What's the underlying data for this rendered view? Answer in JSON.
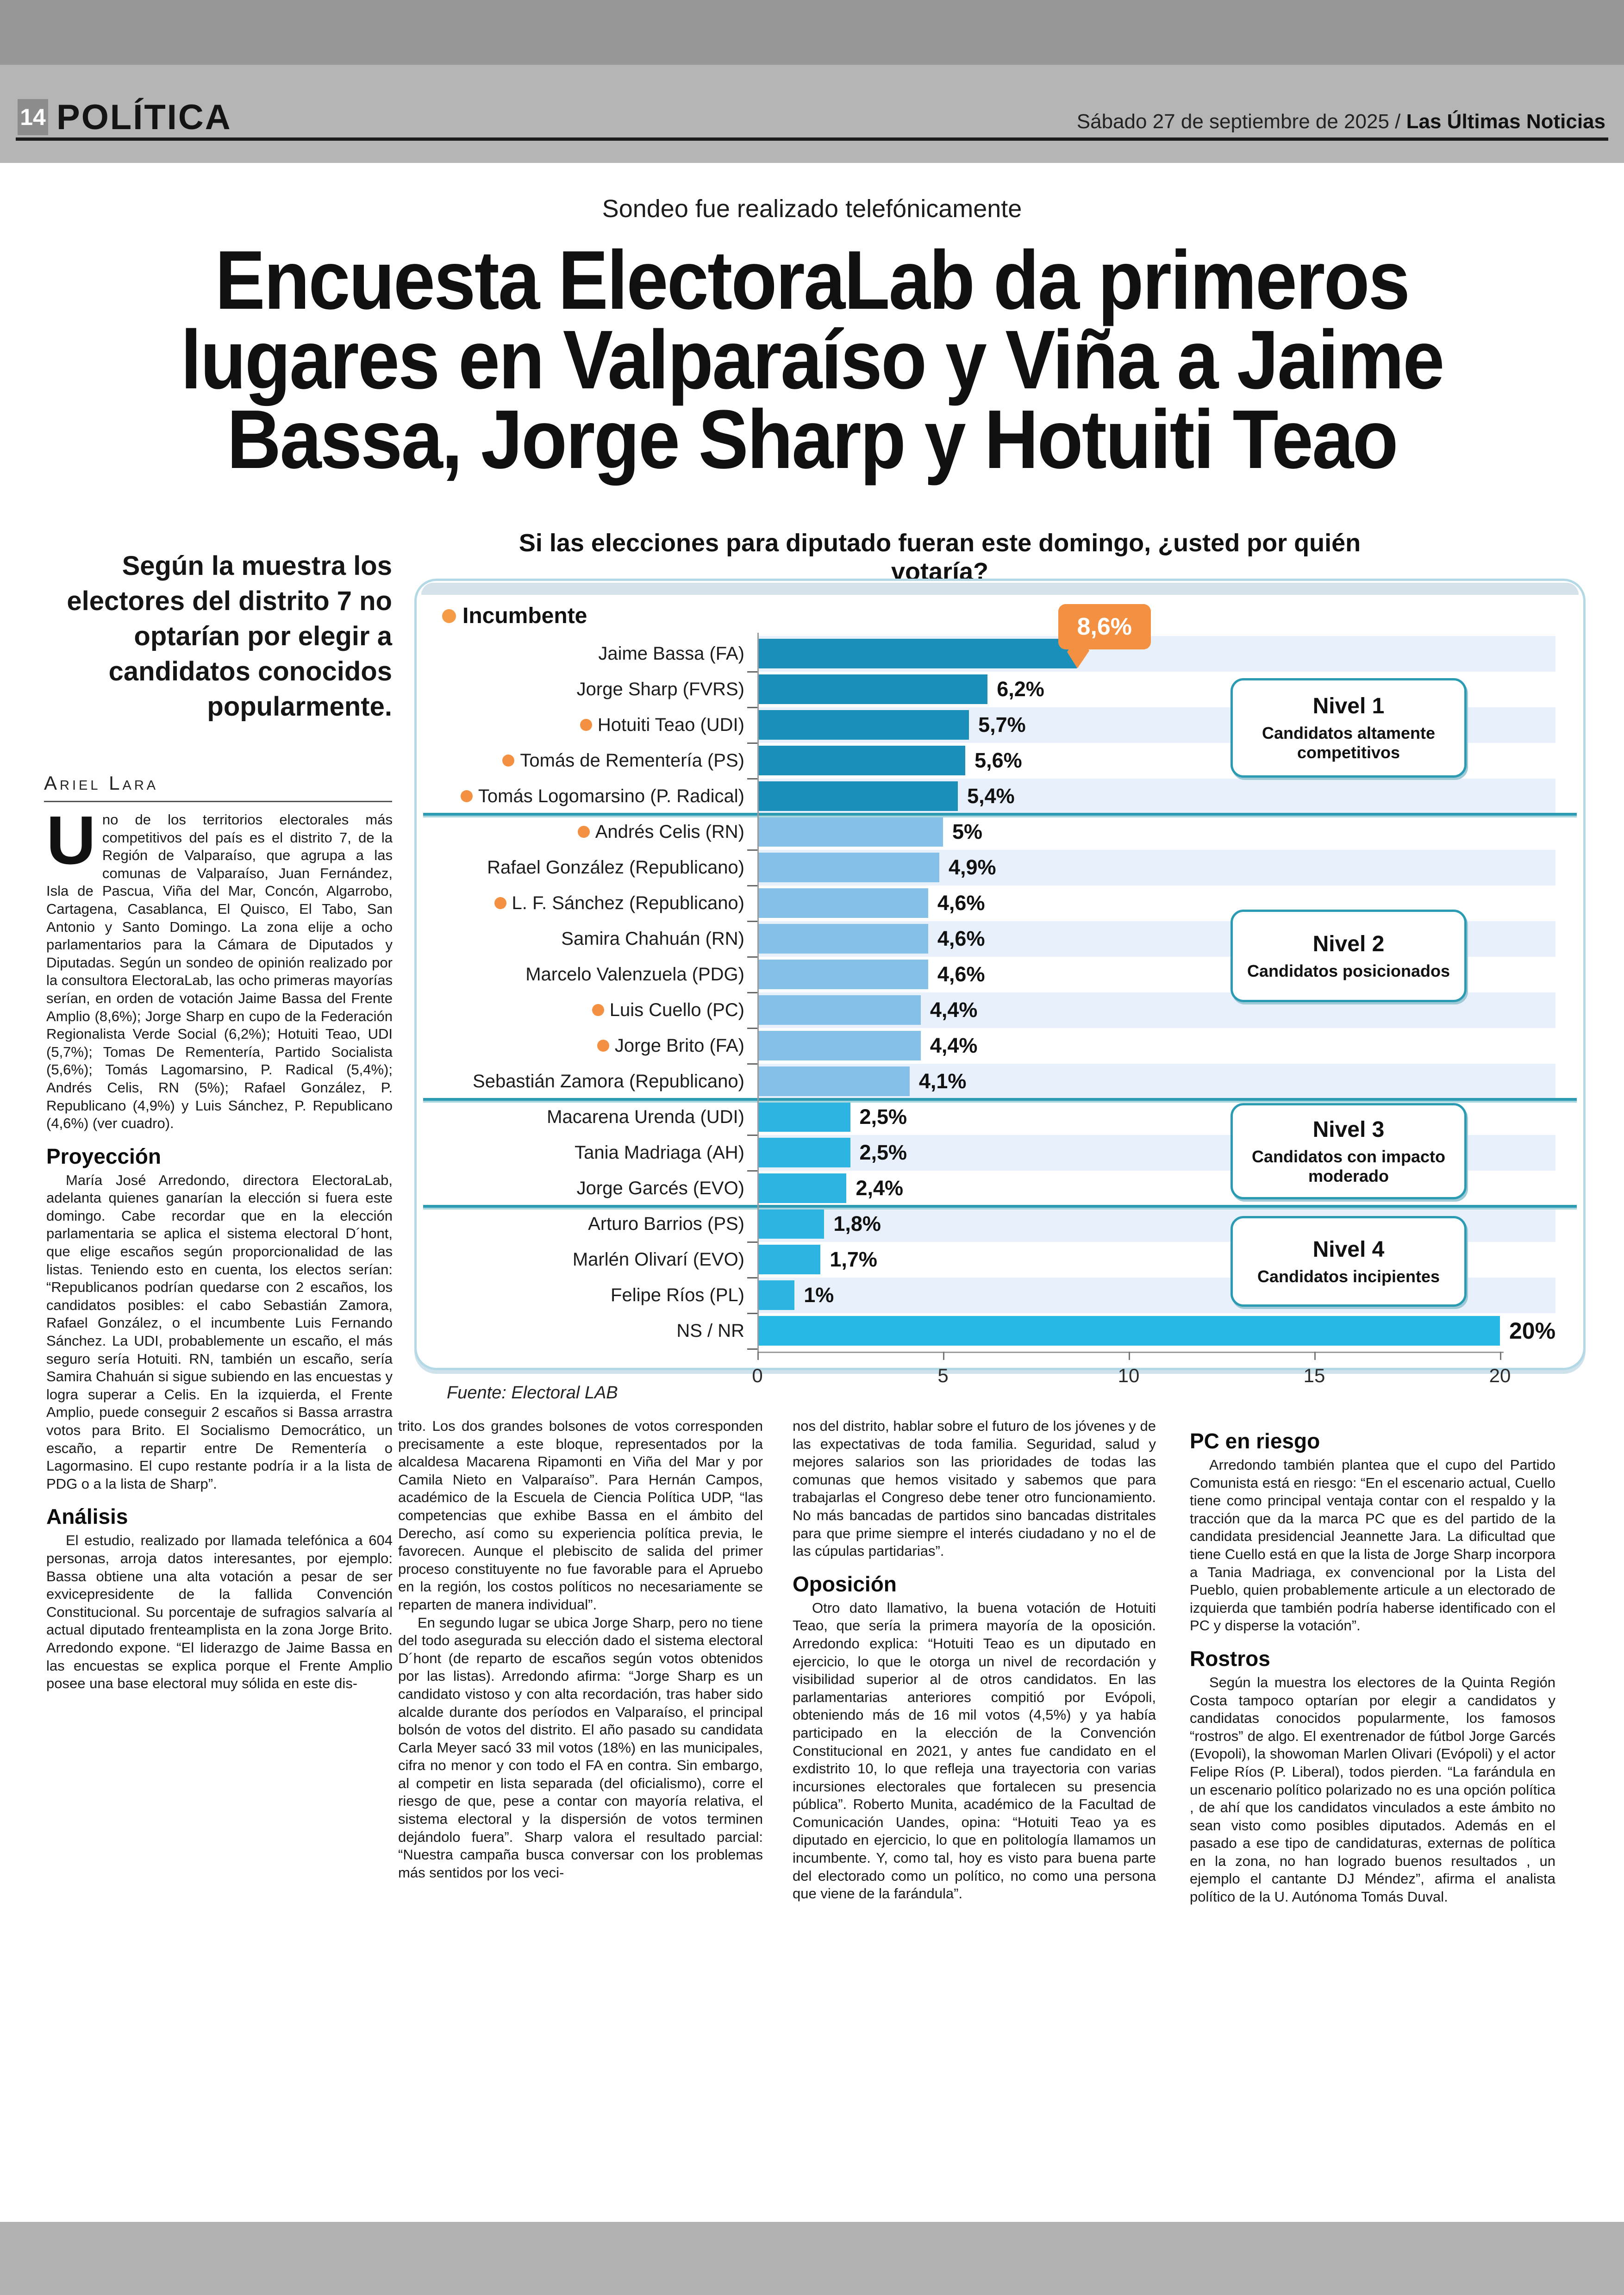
{
  "masthead": {
    "page_number": "14",
    "section": "POLÍTICA",
    "date_regular": "Sábado 27 de septiembre de 2025 / ",
    "date_bold": "Las Últimas Noticias"
  },
  "kicker": "Sondeo fue realizado telefónicamente",
  "headline_lines": [
    "Encuesta ElectoraLab da primeros",
    "lugares en Valparaíso y Viña a Jaime",
    "Bassa, Jorge Sharp y Hotuiti Teao"
  ],
  "standfirst": "Según la muestra los electores del distrito 7 no optarían por elegir a candidatos conocidos popularmente.",
  "byline": "Ariel Lara",
  "chart_data": {
    "type": "bar",
    "orientation": "horizontal",
    "title": "Si las elecciones para diputado fueran este domingo, ¿usted por quién votaría?",
    "legend": {
      "label": "Incumbente",
      "color": "#f59a45"
    },
    "source": "Fuente: Electoral LAB",
    "xlim": [
      0,
      20
    ],
    "x_ticks": [
      0,
      5,
      10,
      15,
      20
    ],
    "grid": false,
    "callout": {
      "row": 0,
      "text": "8,6%"
    },
    "levels": [
      {
        "name": "Nivel 1",
        "desc": "Candidatos altamente competitivos"
      },
      {
        "name": "Nivel 2",
        "desc": "Candidatos posicionados"
      },
      {
        "name": "Nivel 3",
        "desc": "Candidatos con impacto moderado"
      },
      {
        "name": "Nivel 4",
        "desc": "Candidatos incipientes"
      }
    ],
    "rows": [
      {
        "label": "Jaime Bassa (FA)",
        "value": 8.6,
        "display": "8,6%",
        "level": 1,
        "incumbent": false
      },
      {
        "label": "Jorge Sharp (FVRS)",
        "value": 6.2,
        "display": "6,2%",
        "level": 1,
        "incumbent": false
      },
      {
        "label": "Hotuiti Teao (UDI)",
        "value": 5.7,
        "display": "5,7%",
        "level": 1,
        "incumbent": true
      },
      {
        "label": "Tomás de Rementería (PS)",
        "value": 5.6,
        "display": "5,6%",
        "level": 1,
        "incumbent": true
      },
      {
        "label": "Tomás Logomarsino (P. Radical)",
        "value": 5.4,
        "display": "5,4%",
        "level": 1,
        "incumbent": true
      },
      {
        "label": "Andrés Celis (RN)",
        "value": 5.0,
        "display": "5%",
        "level": 2,
        "incumbent": true
      },
      {
        "label": "Rafael González (Republicano)",
        "value": 4.9,
        "display": "4,9%",
        "level": 2,
        "incumbent": false
      },
      {
        "label": "L. F. Sánchez (Republicano)",
        "value": 4.6,
        "display": "4,6%",
        "level": 2,
        "incumbent": true
      },
      {
        "label": "Samira Chahuán (RN)",
        "value": 4.6,
        "display": "4,6%",
        "level": 2,
        "incumbent": false
      },
      {
        "label": "Marcelo Valenzuela (PDG)",
        "value": 4.6,
        "display": "4,6%",
        "level": 2,
        "incumbent": false
      },
      {
        "label": "Luis Cuello (PC)",
        "value": 4.4,
        "display": "4,4%",
        "level": 2,
        "incumbent": true
      },
      {
        "label": "Jorge Brito (FA)",
        "value": 4.4,
        "display": "4,4%",
        "level": 2,
        "incumbent": true
      },
      {
        "label": "Sebastián Zamora (Republicano)",
        "value": 4.1,
        "display": "4,1%",
        "level": 2,
        "incumbent": false
      },
      {
        "label": "Macarena Urenda (UDI)",
        "value": 2.5,
        "display": "2,5%",
        "level": 3,
        "incumbent": false
      },
      {
        "label": "Tania Madriaga (AH)",
        "value": 2.5,
        "display": "2,5%",
        "level": 3,
        "incumbent": false
      },
      {
        "label": "Jorge Garcés (EVO)",
        "value": 2.4,
        "display": "2,4%",
        "level": 3,
        "incumbent": false
      },
      {
        "label": "Arturo Barrios (PS)",
        "value": 1.8,
        "display": "1,8%",
        "level": 4,
        "incumbent": false
      },
      {
        "label": "Marlén Olivarí (EVO)",
        "value": 1.7,
        "display": "1,7%",
        "level": 4,
        "incumbent": false
      },
      {
        "label": "Felipe Ríos (PL)",
        "value": 1.0,
        "display": "1%",
        "level": 4,
        "incumbent": false
      },
      {
        "label": "NS / NR",
        "value": 20.0,
        "display": "20%",
        "level": 0,
        "incumbent": false
      }
    ],
    "colors": {
      "level1": "#1a8fba",
      "level2": "#85c0e9",
      "level3": "#2db4e2",
      "level4": "#2db4e2",
      "nsnr": "#27b8e6",
      "stripe": "#e8f0fb",
      "divider": "#2b9ab3",
      "accent_orange": "#f49041"
    }
  },
  "article": {
    "columns": [
      [
        {
          "type": "lead",
          "dropcap": "U",
          "text": "no de los territorios electorales más competitivos del país es el distrito 7, de la Región de Valparaíso, que agrupa a las comunas de Valparaíso, Juan Fernández, Isla de Pascua, Viña del Mar, Concón, Algarrobo, Cartagena, Casablanca, El Quisco, El Tabo, San Antonio y Santo Domingo. La zona elije a ocho parlamentarios para la Cámara de Diputados y Diputadas. Según un sondeo de opinión realizado por la consultora ElectoraLab, las ocho primeras mayorías serían, en orden de votación Jaime Bassa del Frente Amplio (8,6%); Jorge Sharp en cupo de la Federación Regionalista Verde Social (6,2%); Hotuiti Teao, UDI (5,7%); Tomas De Rementería, Partido Socialista (5,6%); Tomás Lagomarsino, P. Radical (5,4%); Andrés Celis, RN (5%); Rafael González, P. Republicano (4,9%) y Luis Sánchez, P. Republicano (4,6%) (ver cuadro)."
        },
        {
          "type": "h",
          "text": "Proyección"
        },
        {
          "type": "p",
          "text": "María José Arredondo, directora ElectoraLab, adelanta quienes ganarían la elección si fuera este domingo. Cabe recordar que en la elección parlamentaria se aplica el sistema electoral D´hont, que elige escaños según proporcionalidad de las listas. Teniendo esto en cuenta, los electos serían: “Republicanos podrían quedarse con 2 escaños, los candidatos posibles: el cabo Sebastián Zamora, Rafael González, o el incumbente Luis Fernando Sánchez. La UDI, probablemente un escaño, el más seguro sería Hotuiti. RN, también un escaño, sería Samira Chahuán si sigue subiendo en las encuestas y logra superar a Celis. En la izquierda, el Frente Amplio, puede conseguir 2 escaños si Bassa arrastra votos para Brito. El Socialismo Democrático, un escaño, a repartir entre De Rementería o Lagormasino. El cupo restante podría ir a la lista de PDG o a la lista de Sharp”."
        },
        {
          "type": "h",
          "text": "Análisis"
        },
        {
          "type": "p",
          "text": "El estudio, realizado por llamada telefónica a 604 personas, arroja datos interesantes, por ejemplo: Bassa obtiene una alta votación a pesar de ser exvicepresidente de la fallida Convención Constitucional. Su porcentaje de sufragios salvaría al actual diputado frenteamplista en la zona Jorge Brito. Arredondo expone. “El liderazgo de Jaime Bassa en las encuestas se explica porque el Frente Amplio posee una base electoral muy sólida en este dis-"
        }
      ],
      [
        {
          "type": "p",
          "noindent": true,
          "text": "trito. Los dos grandes bolsones de votos corresponden precisamente a este bloque, representados por la alcaldesa Macarena Ripamonti en Viña del Mar y por Camila Nieto en Valparaíso”. Para Hernán Campos, académico de la Escuela de Ciencia Política UDP, “las competencias que exhibe Bassa en el ámbito del Derecho, así como su experiencia política previa, le favorecen. Aunque el plebiscito de salida del primer proceso constituyente no fue favorable para el Apruebo en la región, los costos políticos no necesariamente se reparten de manera individual”."
        },
        {
          "type": "p",
          "text": "En segundo lugar se ubica Jorge Sharp, pero no tiene del todo asegurada su elección dado el sistema electoral D´hont (de reparto de escaños según votos obtenidos por las listas). Arredondo afirma: “Jorge Sharp es un candidato vistoso y con alta recordación, tras haber sido alcalde durante dos períodos en Valparaíso, el principal bolsón de votos del distrito. El año pasado su candidata Carla Meyer sacó 33 mil votos (18%) en las municipales, cifra no menor y con todo el FA en contra. Sin embargo, al competir en lista separada (del oficialismo), corre el riesgo de que, pese a contar con mayoría relativa, el sistema electoral y la dispersión de votos terminen dejándolo fuera”. Sharp valora el resultado parcial: “Nuestra campaña busca conversar con los problemas más sentidos por los veci-"
        }
      ],
      [
        {
          "type": "p",
          "noindent": true,
          "text": "nos del distrito, hablar sobre el futuro de los jóvenes y de las expectativas de toda familia. Seguridad, salud y mejores salarios son las prioridades de todas las comunas que hemos visitado y sabemos que para trabajarlas el Congreso debe tener otro funcionamiento. No más bancadas de partidos sino bancadas distritales para que prime siempre el interés ciudadano y no el de las cúpulas partidarias”."
        },
        {
          "type": "h",
          "text": "Oposición"
        },
        {
          "type": "p",
          "text": "Otro dato llamativo, la buena votación de Hotuiti Teao, que sería la primera mayoría de la oposición. Arredondo explica: “Hotuiti Teao es un diputado en ejercicio, lo que le otorga un nivel de recordación y visibilidad superior al de otros candidatos. En las parlamentarias anteriores compitió por Evópoli, obteniendo más de 16 mil votos (4,5%) y ya había participado en la elección de la Convención Constitucional en 2021, y antes fue candidato en el exdistrito 10, lo que refleja una trayectoria con varias incursiones electorales que fortalecen su presencia pública”. Roberto Munita, académico de la Facultad de Comunicación Uandes, opina: “Hotuiti Teao ya es diputado en ejercicio, lo que en politología llamamos un incumbente. Y, como tal, hoy es visto para buena parte del electorado como un político, no como una persona que viene de la farándula”."
        }
      ],
      [
        {
          "type": "h",
          "text": "PC en riesgo"
        },
        {
          "type": "p",
          "text": "Arredondo también plantea que el cupo del Partido Comunista está en riesgo: “En el escenario actual, Cuello tiene como principal ventaja contar con el respaldo y la tracción que da la marca PC que es del partido de la candidata presidencial Jeannette Jara. La dificultad que tiene Cuello está en que la lista de Jorge Sharp incorpora a Tania Madriaga, ex convencional por la Lista del Pueblo, quien probablemente articule a un electorado de izquierda que también podría haberse identificado con el PC y disperse la votación”."
        },
        {
          "type": "h",
          "text": "Rostros"
        },
        {
          "type": "p",
          "text": "Según la muestra los electores de la Quinta Región Costa tampoco optarían por elegir a candidatos y candidatas conocidos popularmente, los famosos “rostros” de algo. El exentrenador de fútbol Jorge Garcés (Evopoli), la showoman Marlen Olivari (Evópoli) y el actor Felipe Ríos (P. Liberal), todos pierden. “La farándula en un escenario político polarizado no es una opción política , de ahí que los candidatos vinculados a este ámbito no sean visto como posibles diputados. Además en el pasado a ese tipo de candidaturas, externas de política en la zona, no han logrado buenos resultados , un ejemplo el cantante DJ Méndez”, afirma el analista político de la U. Autónoma Tomás Duval."
        }
      ]
    ]
  }
}
